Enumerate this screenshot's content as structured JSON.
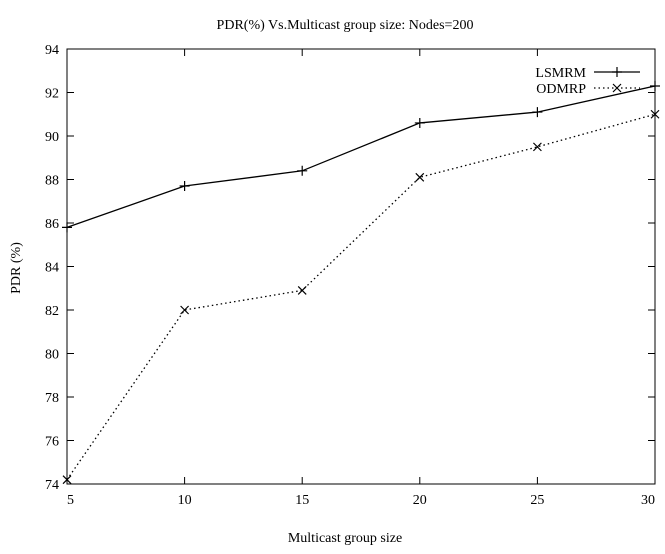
{
  "chart_data": {
    "type": "line",
    "title": "PDR(%) Vs.Multicast group size: Nodes=200",
    "xlabel": "Multicast group size",
    "ylabel": "PDR (%)",
    "xlim": [
      5,
      30
    ],
    "ylim": [
      74,
      94
    ],
    "xticks": [
      5,
      10,
      15,
      20,
      25,
      30
    ],
    "yticks": [
      74,
      76,
      78,
      80,
      82,
      84,
      86,
      88,
      90,
      92,
      94
    ],
    "grid": false,
    "legend_position": "top-right",
    "x": [
      5,
      10,
      15,
      20,
      25,
      30
    ],
    "series": [
      {
        "name": "LSMRM",
        "values": [
          85.8,
          87.7,
          88.4,
          90.6,
          91.1,
          92.3
        ],
        "marker": "+",
        "line_style": "solid",
        "color": "#000000"
      },
      {
        "name": "ODMRP",
        "values": [
          74.2,
          82.0,
          82.9,
          88.1,
          89.5,
          91.0
        ],
        "marker": "x",
        "line_style": "dotted",
        "color": "#000000"
      }
    ]
  }
}
